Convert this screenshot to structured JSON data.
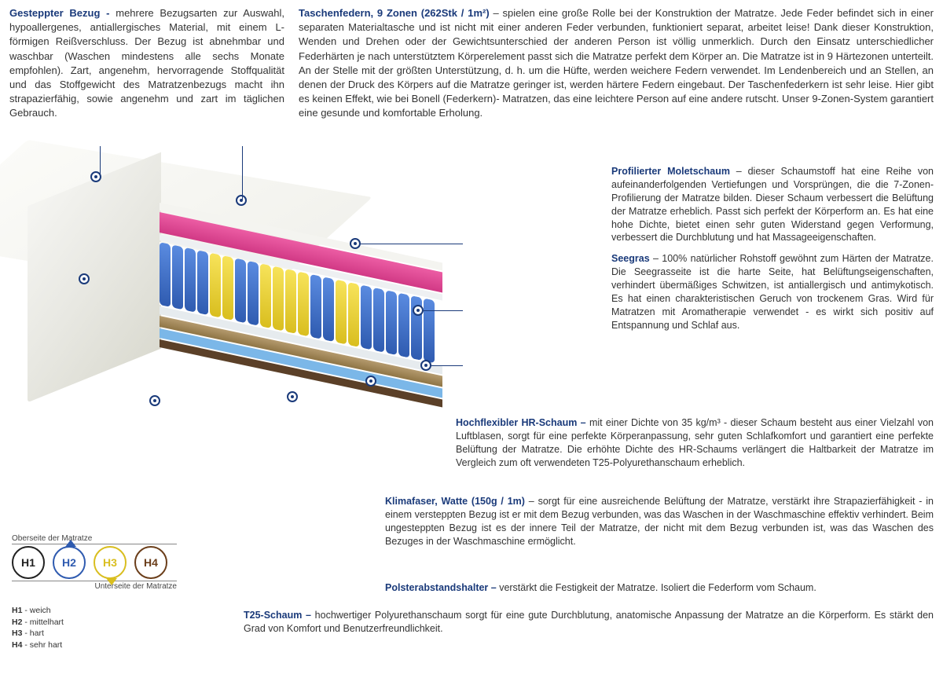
{
  "top_left": {
    "heading": "Gesteppter Bezug -",
    "body": " mehrere Bezugsarten zur Auswahl, hypoallergenes, antiallergisches Material, mit einem L-förmigen Reißverschluss. Der Bezug ist abnehmbar und waschbar (Waschen mindestens alle sechs Monate empfohlen). Zart, angenehm, hervorragende Stoffqualität und das Stoffgewicht des Matratzenbezugs macht ihn strapazierfähig, sowie angenehm und zart im täglichen Gebrauch."
  },
  "top_right": {
    "heading": "Taschenfedern, 9 Zonen (262Stk / 1m²)",
    "body": " – spielen eine große Rolle bei der Konstruktion der Matratze. Jede Feder befindet sich in einer separaten Materialtasche und ist nicht mit einer anderen Feder verbunden, funktioniert separat, arbeitet leise! Dank dieser Konstruktion, Wenden und Drehen oder der Gewichtsunterschied der anderen Person ist völlig unmerklich. Durch den Einsatz unterschiedlicher Federhärten je nach unterstütztem Körperelement passt sich die Matratze perfekt dem Körper an. Die Matratze ist in 9 Härtezonen unterteilt. An der Stelle mit der größten Unterstützung, d. h. um die Hüfte, werden weichere Federn verwendet. Im Lendenbereich und an Stellen, an denen der Druck des Körpers auf die Matratze geringer ist, werden härtere Federn eingebaut. Der Taschenfederkern ist sehr leise. Hier gibt es keinen Effekt, wie bei Bonell (Federkern)- Matratzen, das eine leichtere Person auf eine andere rutscht. Unser 9-Zonen-System garantiert eine gesunde und komfortable Erholung."
  },
  "layers": {
    "molet": {
      "heading": "Profilierter Moletschaum",
      "body": " – dieser Schaumstoff hat eine Reihe von aufeinanderfolgenden Vertiefungen und Vorsprüngen, die die 7-Zonen-Profilierung der Matratze bilden. Dieser Schaum verbessert die Belüftung der Matratze erheblich. Passt sich perfekt der Körperform an. Es hat eine hohe Dichte, bietet einen sehr guten Widerstand gegen Verformung, verbessert die Durchblutung und hat Massageeigenschaften."
    },
    "seegras": {
      "heading": "Seegras",
      "body": " – 100% natürlicher Rohstoff gewöhnt zum Härten der Matratze. Die Seegrasseite ist die harte Seite, hat Belüftungseigenschaften, verhindert übermäßiges Schwitzen, ist antiallergisch und antimykotisch. Es hat einen charakteristischen Geruch von trockenem Gras. Wird für Matratzen mit Aromatherapie verwendet - es wirkt sich positiv auf Entspannung und Schlaf aus."
    },
    "hr": {
      "heading": "Hochflexibler HR-Schaum –",
      "body": " mit einer Dichte von 35 kg/m³ - dieser Schaum besteht aus einer Vielzahl von Luftblasen, sorgt für eine perfekte Körperanpassung, sehr guten Schlafkomfort und garantiert eine perfekte Belüftung der Matratze. Die erhöhte Dichte des HR-Schaums verlängert die Haltbarkeit der Matratze im Vergleich zum oft verwendeten T25-Polyurethanschaum erheblich."
    },
    "klima": {
      "heading": "Klimafaser, Watte (150g / 1m)",
      "body": " – sorgt für eine ausreichende Belüftung der Matratze, verstärkt ihre Strapazierfähigkeit - in einem versteppten Bezug ist er mit dem Bezug verbunden, was das Waschen in der Waschmaschine effektiv verhindert. Beim ungesteppten Bezug ist es der innere Teil der Matratze, der nicht mit dem Bezug verbunden ist, was das Waschen des Bezuges in der Waschmaschine ermöglicht."
    },
    "polster": {
      "heading": "Polsterabstandshalter –",
      "body": " verstärkt die Festigkeit der Matratze. Isoliert die Federform vom Schaum."
    },
    "t25": {
      "heading": "T25-Schaum –",
      "body": " hochwertiger Polyurethanschaum sorgt für eine gute Durchblutung, anatomische Anpassung der Matratze an die Körperform. Es stärkt den Grad von Komfort und Benutzerfreundlichkeit."
    }
  },
  "hardness": {
    "top_label": "Oberseite der Matratze",
    "bottom_label": "Unterseite der Matratze",
    "circles": [
      {
        "label": "H1",
        "color": "#222222",
        "selected_top": false,
        "selected_bottom": false
      },
      {
        "label": "H2",
        "color": "#2f5bb0",
        "selected_top": true,
        "selected_bottom": false
      },
      {
        "label": "H3",
        "color": "#d9be1f",
        "selected_top": false,
        "selected_bottom": true
      },
      {
        "label": "H4",
        "color": "#6b3e1a",
        "selected_top": false,
        "selected_bottom": false
      }
    ],
    "legend": [
      {
        "k": "H1",
        "v": " - weich"
      },
      {
        "k": "H2",
        "v": " - mittelhart"
      },
      {
        "k": "H3",
        "v": " - hart"
      },
      {
        "k": "H4",
        "v": " - sehr hart"
      }
    ]
  },
  "colors": {
    "heading": "#1a3a7a",
    "text": "#333333",
    "pink": "#ec5da4",
    "spring_blue": "#2f5bb0",
    "spring_yellow": "#d9be1f",
    "burlap": "#b49a6e",
    "hr_blue": "#7bb7e8",
    "brown": "#5b4028"
  },
  "spring_pattern": [
    "b",
    "b",
    "b",
    "b",
    "y",
    "y",
    "b",
    "b",
    "y",
    "y",
    "y",
    "y",
    "b",
    "b",
    "y",
    "y",
    "b",
    "b",
    "b",
    "b",
    "b",
    "b"
  ]
}
